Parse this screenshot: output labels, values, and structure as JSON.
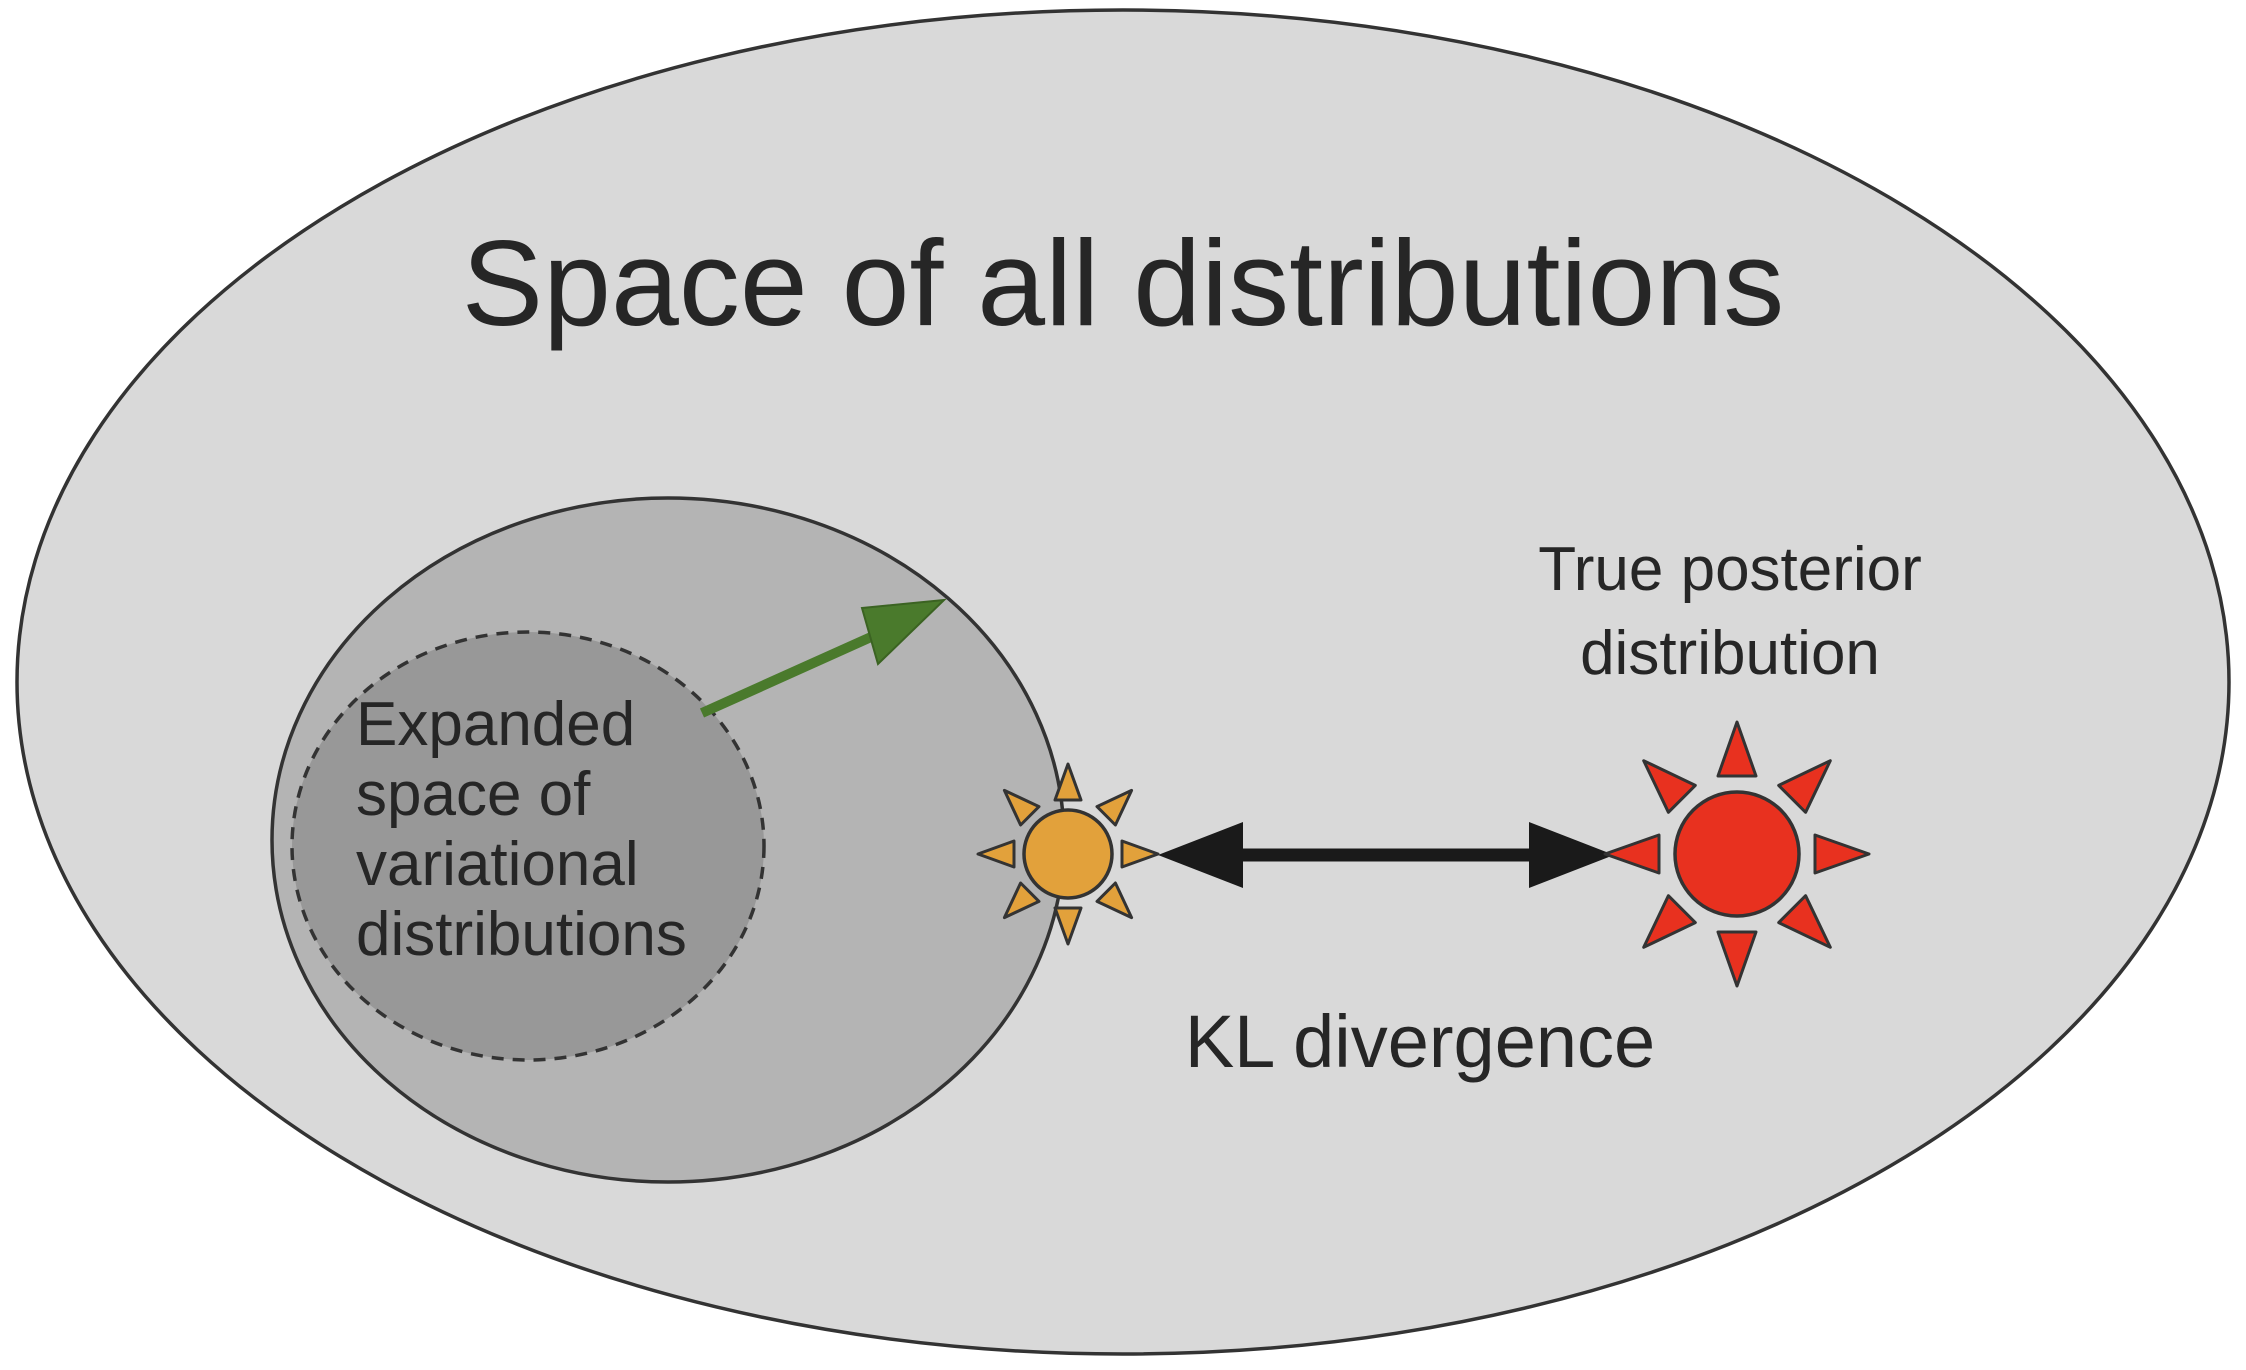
{
  "title": "Space of all distributions",
  "expanded_space": {
    "lines": [
      "Expanded",
      "space of",
      "variational",
      "distributions"
    ]
  },
  "true_posterior": {
    "lines": [
      "True posterior",
      "distribution"
    ]
  },
  "kl_label": "KL divergence",
  "colors": {
    "outer_fill": "#d9d9d9",
    "variational_fill": "#b4b4b4",
    "inner_fill": "#989898",
    "outline": "#333333",
    "arrow_green": "#4a7a2c",
    "approx_sun": "#e2a13b",
    "true_sun": "#e8311f",
    "kl_arrow": "#1a1a1a",
    "text": "#262626"
  },
  "icons": {
    "approximation": "sun-icon",
    "true_posterior": "sun-icon"
  }
}
